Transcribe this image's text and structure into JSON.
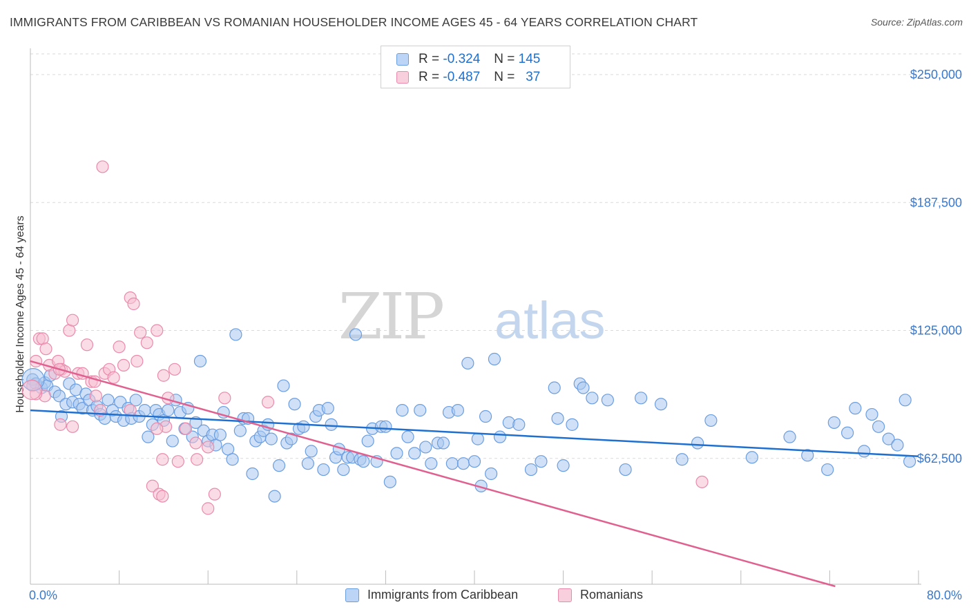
{
  "title": "IMMIGRANTS FROM CARIBBEAN VS ROMANIAN HOUSEHOLDER INCOME AGES 45 - 64 YEARS CORRELATION CHART",
  "source": "Source: ZipAtlas.com",
  "watermark": {
    "part1": "ZIP",
    "part2": "atlas"
  },
  "colors": {
    "blue_fill": "#aac8f0",
    "blue_stroke": "#6a9de0",
    "blue_line": "#1f6fce",
    "pink_fill": "#f6bfd2",
    "pink_stroke": "#e98aac",
    "pink_line": "#e0608f",
    "axis_label": "#3a78c9",
    "grid": "#d9d9d9"
  },
  "legend": {
    "rows": [
      {
        "r_label": "R = ",
        "r_value": "-0.324",
        "n_label": "N = ",
        "n_value": "145"
      },
      {
        "r_label": "R = ",
        "r_value": "-0.487",
        "n_label": "N = ",
        "n_value": "37"
      }
    ]
  },
  "chart_data": {
    "type": "scatter",
    "title": "IMMIGRANTS FROM CARIBBEAN VS ROMANIAN HOUSEHOLDER INCOME AGES 45 - 64 YEARS CORRELATION CHART",
    "xlabel": "",
    "ylabel": "Householder Income Ages 45 - 64 years",
    "xlim": [
      0,
      80
    ],
    "ylim": [
      0,
      262500
    ],
    "x_tick_labels": [
      {
        "value": 0,
        "label": "0.0%"
      },
      {
        "value": 80,
        "label": "80.0%"
      }
    ],
    "y_tick_labels": [
      {
        "value": 62500,
        "label": "$62,500"
      },
      {
        "value": 125000,
        "label": "$125,000"
      },
      {
        "value": 187500,
        "label": "$187,500"
      },
      {
        "value": 250000,
        "label": "$250,000"
      }
    ],
    "grid": true,
    "legend_position": "top-center",
    "series": [
      {
        "name": "Immigrants from Caribbean",
        "color": "#aac8f0",
        "trend": {
          "x": [
            0,
            80
          ],
          "y": [
            86000,
            63500
          ]
        },
        "points": [
          [
            0.2,
            101000
          ],
          [
            0.5,
            99000
          ],
          [
            1,
            97000
          ],
          [
            1.3,
            99500
          ],
          [
            1.5,
            98000
          ],
          [
            1.8,
            103000
          ],
          [
            2.2,
            95000
          ],
          [
            2.6,
            93000
          ],
          [
            2.8,
            83000
          ],
          [
            3.2,
            89000
          ],
          [
            3.5,
            99000
          ],
          [
            3.8,
            90000
          ],
          [
            4.1,
            96000
          ],
          [
            4.4,
            89000
          ],
          [
            4.7,
            87000
          ],
          [
            5,
            94000
          ],
          [
            5.3,
            91000
          ],
          [
            5.6,
            86000
          ],
          [
            6,
            88000
          ],
          [
            6.3,
            84000
          ],
          [
            6.7,
            82000
          ],
          [
            7,
            91000
          ],
          [
            7.4,
            86000
          ],
          [
            7.7,
            83000
          ],
          [
            8.1,
            90000
          ],
          [
            8.4,
            81000
          ],
          [
            8.8,
            87000
          ],
          [
            9.1,
            82000
          ],
          [
            9.5,
            91000
          ],
          [
            9.8,
            83000
          ],
          [
            10.3,
            86000
          ],
          [
            10.6,
            73000
          ],
          [
            11,
            79000
          ],
          [
            11.3,
            86000
          ],
          [
            11.6,
            84000
          ],
          [
            12,
            81000
          ],
          [
            12.4,
            86000
          ],
          [
            12.8,
            71000
          ],
          [
            13.1,
            91000
          ],
          [
            13.5,
            85000
          ],
          [
            13.9,
            77000
          ],
          [
            14.2,
            87000
          ],
          [
            14.6,
            73000
          ],
          [
            14.9,
            80000
          ],
          [
            15.3,
            110000
          ],
          [
            15.6,
            76000
          ],
          [
            16,
            71000
          ],
          [
            16.4,
            74000
          ],
          [
            16.7,
            69000
          ],
          [
            17.1,
            74000
          ],
          [
            17.4,
            85000
          ],
          [
            17.8,
            67000
          ],
          [
            18.2,
            62000
          ],
          [
            18.5,
            123000
          ],
          [
            18.9,
            76000
          ],
          [
            19.2,
            82000
          ],
          [
            19.6,
            82000
          ],
          [
            20,
            55000
          ],
          [
            20.3,
            71000
          ],
          [
            20.7,
            73000
          ],
          [
            21,
            76000
          ],
          [
            21.4,
            79000
          ],
          [
            21.7,
            72000
          ],
          [
            22,
            44000
          ],
          [
            22.4,
            59000
          ],
          [
            22.8,
            98000
          ],
          [
            23.1,
            70000
          ],
          [
            23.5,
            72000
          ],
          [
            23.8,
            89000
          ],
          [
            24.2,
            77000
          ],
          [
            24.6,
            78000
          ],
          [
            25,
            60000
          ],
          [
            25.3,
            66000
          ],
          [
            25.7,
            83000
          ],
          [
            26,
            86000
          ],
          [
            26.4,
            57000
          ],
          [
            26.8,
            87000
          ],
          [
            27.1,
            79000
          ],
          [
            27.5,
            63000
          ],
          [
            27.8,
            67000
          ],
          [
            28.2,
            57000
          ],
          [
            28.6,
            63000
          ],
          [
            29,
            63000
          ],
          [
            29.3,
            123000
          ],
          [
            29.7,
            62000
          ],
          [
            30,
            61000
          ],
          [
            30.4,
            71000
          ],
          [
            30.8,
            77000
          ],
          [
            31.2,
            61000
          ],
          [
            31.6,
            78000
          ],
          [
            32,
            78000
          ],
          [
            32.4,
            51000
          ],
          [
            33,
            65000
          ],
          [
            33.5,
            86000
          ],
          [
            34,
            73000
          ],
          [
            34.6,
            65000
          ],
          [
            35.1,
            86000
          ],
          [
            35.6,
            68000
          ],
          [
            36.1,
            60000
          ],
          [
            36.7,
            70000
          ],
          [
            37.2,
            70000
          ],
          [
            37.7,
            85000
          ],
          [
            38,
            60000
          ],
          [
            38.5,
            86000
          ],
          [
            39,
            60000
          ],
          [
            39.4,
            109000
          ],
          [
            40,
            61000
          ],
          [
            40.3,
            72000
          ],
          [
            40.6,
            49000
          ],
          [
            41,
            83000
          ],
          [
            41.5,
            55000
          ],
          [
            41.8,
            111000
          ],
          [
            42.3,
            73000
          ],
          [
            43.1,
            80000
          ],
          [
            44,
            79000
          ],
          [
            45.1,
            57000
          ],
          [
            46,
            61000
          ],
          [
            47.2,
            97000
          ],
          [
            47.5,
            82000
          ],
          [
            48,
            59000
          ],
          [
            48.8,
            79000
          ],
          [
            49.5,
            99000
          ],
          [
            49.8,
            97000
          ],
          [
            50.6,
            92000
          ],
          [
            52,
            91000
          ],
          [
            53.6,
            57000
          ],
          [
            55,
            92000
          ],
          [
            56.8,
            89000
          ],
          [
            58.7,
            62000
          ],
          [
            60.1,
            70000
          ],
          [
            61.3,
            81000
          ],
          [
            65,
            63000
          ],
          [
            68.4,
            73000
          ],
          [
            70,
            64000
          ],
          [
            71.8,
            57000
          ],
          [
            72.4,
            80000
          ],
          [
            73.6,
            75000
          ],
          [
            74.3,
            87000
          ],
          [
            75.1,
            66000
          ],
          [
            75.8,
            84000
          ],
          [
            76.4,
            78000
          ],
          [
            77.3,
            72000
          ],
          [
            78.1,
            69000
          ],
          [
            78.8,
            91000
          ],
          [
            79.2,
            61000
          ]
        ]
      },
      {
        "name": "Romanians",
        "color": "#f6bfd2",
        "trend": {
          "x": [
            0,
            72.5
          ],
          "y": [
            110000,
            0
          ]
        },
        "points": [
          [
            0.2,
            98000
          ],
          [
            0.5,
            110000
          ],
          [
            0.8,
            121000
          ],
          [
            1.1,
            121000
          ],
          [
            1.4,
            116000
          ],
          [
            1.7,
            108000
          ],
          [
            2.2,
            104000
          ],
          [
            2.5,
            110000
          ],
          [
            2.8,
            106000
          ],
          [
            3.1,
            105000
          ],
          [
            3.5,
            125000
          ],
          [
            3.8,
            130000
          ],
          [
            4.3,
            104000
          ],
          [
            4.7,
            104000
          ],
          [
            5.1,
            118000
          ],
          [
            5.5,
            100000
          ],
          [
            5.9,
            93000
          ],
          [
            6.3,
            86000
          ],
          [
            6.7,
            104000
          ],
          [
            7.1,
            106000
          ],
          [
            7.5,
            102000
          ],
          [
            8,
            117000
          ],
          [
            8.4,
            108000
          ],
          [
            9,
            141000
          ],
          [
            9.3,
            138000
          ],
          [
            9.6,
            110000
          ],
          [
            9.9,
            124000
          ],
          [
            10.5,
            119000
          ],
          [
            11,
            49000
          ],
          [
            11.4,
            125000
          ],
          [
            12,
            103000
          ],
          [
            12.4,
            92000
          ],
          [
            13,
            106000
          ],
          [
            14,
            77000
          ],
          [
            15,
            62000
          ],
          [
            16,
            68000
          ],
          [
            16.6,
            45000
          ]
        ]
      }
    ]
  },
  "extra_points": {
    "romanians": [
      [
        6.5,
        205000
      ],
      [
        5.8,
        100000
      ],
      [
        9,
        86000
      ],
      [
        11.9,
        62000
      ],
      [
        12.2,
        78000
      ],
      [
        11.4,
        77000
      ],
      [
        11.6,
        45000
      ],
      [
        11.9,
        44000
      ],
      [
        13.3,
        61000
      ],
      [
        14.9,
        70000
      ],
      [
        16,
        38000
      ],
      [
        21.4,
        90000
      ],
      [
        17.5,
        92000
      ],
      [
        60.5,
        51000
      ],
      [
        3.8,
        78000
      ],
      [
        2.7,
        79000
      ],
      [
        1.3,
        93000
      ],
      [
        0.5,
        94000
      ],
      [
        2.6,
        106000
      ]
    ]
  },
  "bottom_legend": {
    "items": [
      "Immigrants from Caribbean",
      "Romanians"
    ]
  }
}
